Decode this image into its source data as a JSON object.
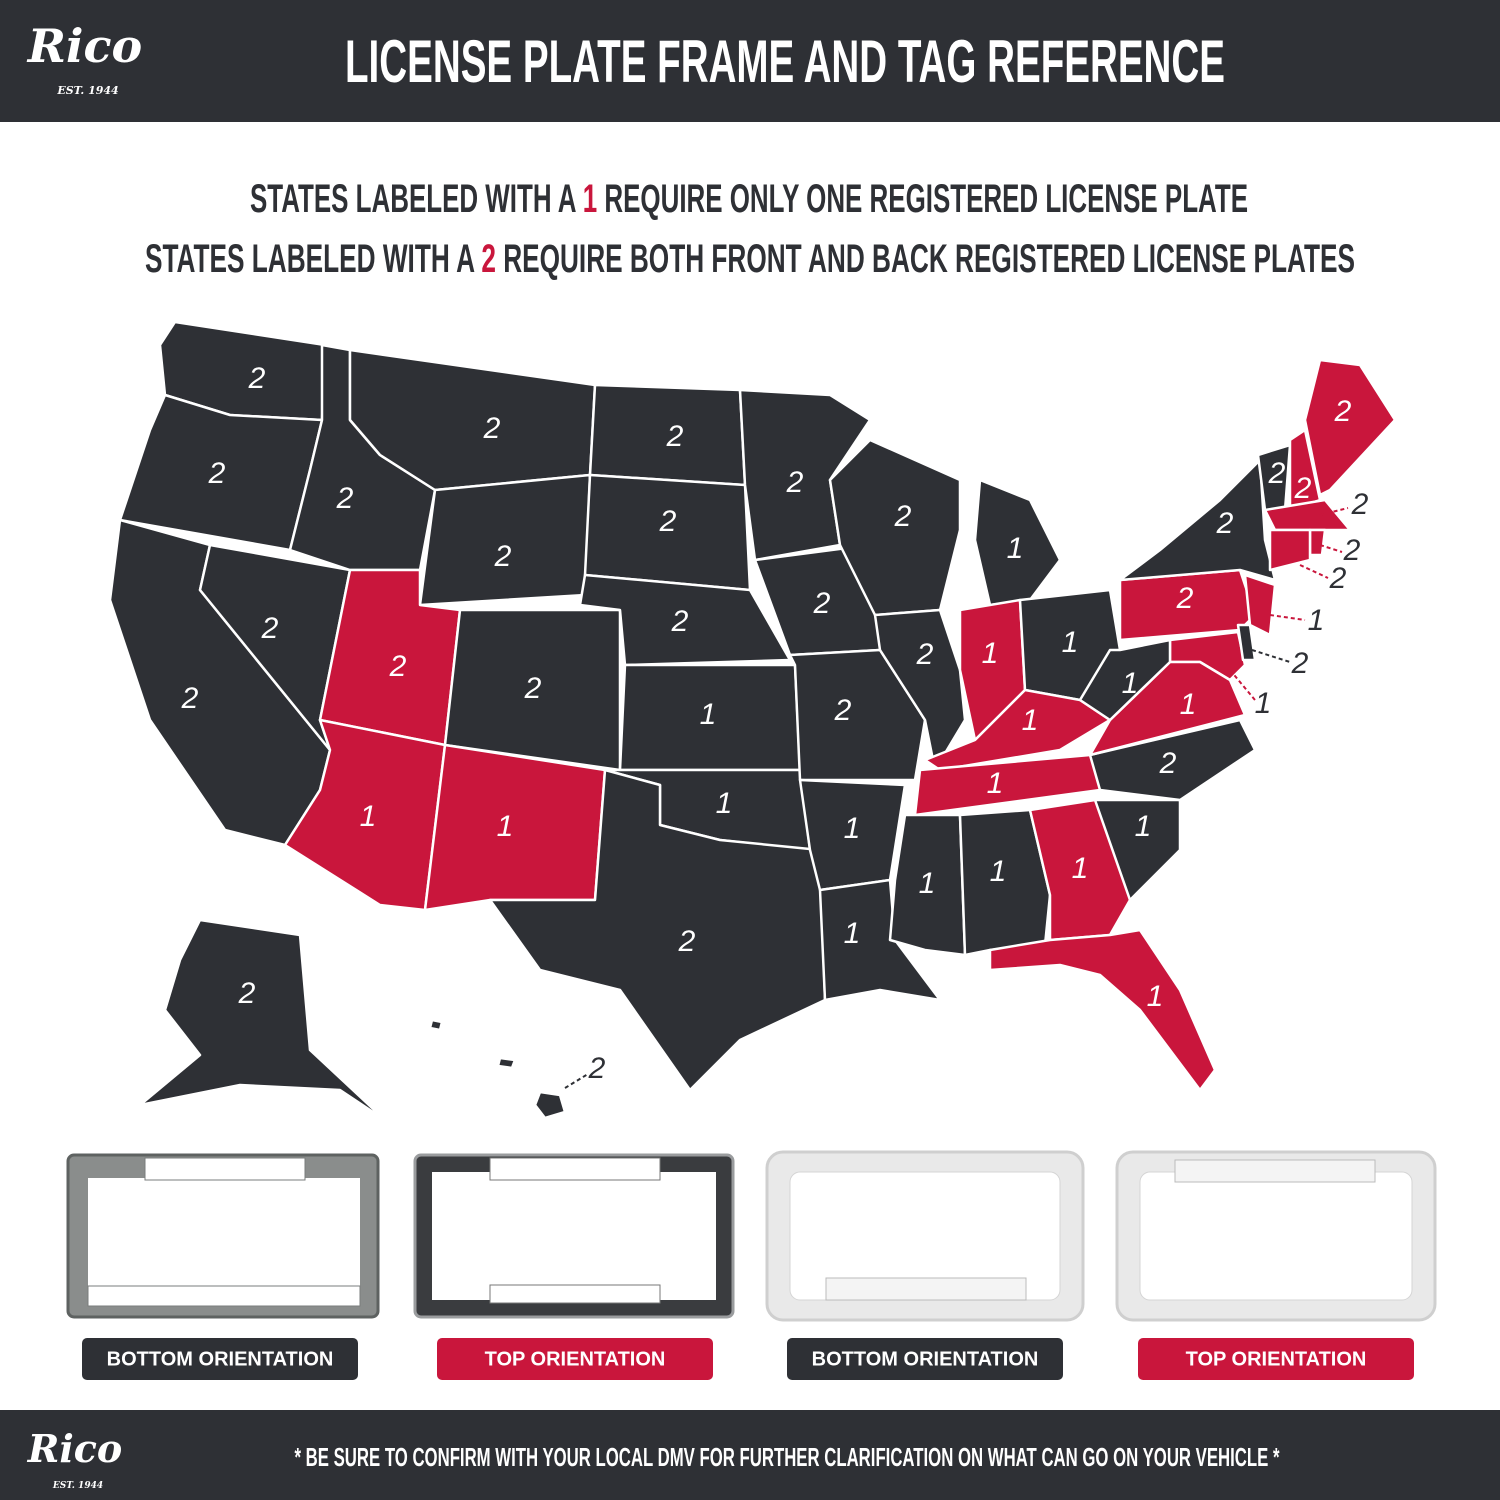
{
  "header": {
    "logo": "Rico",
    "logo_est": "EST. 1944",
    "title": "LICENSE PLATE FRAME AND TAG REFERENCE"
  },
  "legend": [
    {
      "prefix": "STATES LABELED WITH A",
      "number": "1",
      "suffix": "REQUIRE ONLY ONE REGISTERED LICENSE PLATE"
    },
    {
      "prefix": "STATES LABELED WITH A",
      "number": "2",
      "suffix": "REQUIRE BOTH FRONT AND BACK REGISTERED LICENSE PLATES"
    }
  ],
  "map": {
    "states": [
      {
        "label": "2",
        "color": "#2e3035"
      },
      {
        "label": "2",
        "color": "#2e3035"
      },
      {
        "label": "2",
        "color": "#2e3035"
      },
      {
        "label": "2",
        "color": "#2e3035"
      },
      {
        "label": "2",
        "color": "#2e3035"
      },
      {
        "label": "2",
        "color": "#2e3035"
      },
      {
        "label": "2",
        "color": "#2e3035"
      },
      {
        "label": "2",
        "color": "#c9163c"
      },
      {
        "label": "2",
        "color": "#2e3035"
      },
      {
        "label": "1",
        "color": "#c9163c"
      },
      {
        "label": "1",
        "color": "#c9163c"
      },
      {
        "label": "2",
        "color": "#2e3035"
      },
      {
        "label": "2",
        "color": "#2e3035"
      },
      {
        "label": "2",
        "color": "#2e3035"
      },
      {
        "label": "1",
        "color": "#2e3035"
      },
      {
        "label": "1",
        "color": "#2e3035"
      },
      {
        "label": "2",
        "color": "#2e3035"
      },
      {
        "label": "2",
        "color": "#2e3035"
      },
      {
        "label": "2",
        "color": "#2e3035"
      },
      {
        "label": "2",
        "color": "#2e3035"
      },
      {
        "label": "1",
        "color": "#2e3035"
      },
      {
        "label": "1",
        "color": "#2e3035"
      },
      {
        "label": "2",
        "color": "#2e3035"
      },
      {
        "label": "2",
        "color": "#2e3035"
      },
      {
        "label": "1",
        "color": "#2e3035"
      },
      {
        "label": "1",
        "color": "#c9163c"
      },
      {
        "label": "1",
        "color": "#2e3035"
      },
      {
        "label": "1",
        "color": "#c9163c"
      },
      {
        "label": "1",
        "color": "#c9163c"
      },
      {
        "label": "1",
        "color": "#2e3035"
      },
      {
        "label": "1",
        "color": "#2e3035"
      },
      {
        "label": "1",
        "color": "#c9163c"
      },
      {
        "label": "1",
        "color": "#c9163c"
      },
      {
        "label": "1",
        "color": "#2e3035"
      },
      {
        "label": "1",
        "color": "#c9163c"
      },
      {
        "label": "2",
        "color": "#2e3035"
      },
      {
        "label": "1",
        "color": "#c9163c"
      },
      {
        "label": "1",
        "color": "#2e3035"
      },
      {
        "label": "2",
        "color": "#c9163c"
      },
      {
        "label": "2",
        "color": "#2e3035"
      },
      {
        "label": "2",
        "color": "#2e3035"
      },
      {
        "label": "2",
        "color": "#c9163c"
      },
      {
        "label": "2",
        "color": "#c9163c"
      },
      {
        "label": "2",
        "color": "#c9163c"
      },
      {
        "label": "2",
        "color": "#c9163c"
      },
      {
        "label": "2",
        "color": "#c9163c"
      },
      {
        "label": "1",
        "color": "#c9163c"
      },
      {
        "label": "2",
        "color": "#2e3035"
      },
      {
        "label": "2",
        "color": "#2e3035"
      },
      {
        "label": "2",
        "color": "#2e3035"
      }
    ]
  },
  "frames": [
    {
      "caption": "BOTTOM ORIENTATION"
    },
    {
      "caption": "TOP ORIENTATION"
    },
    {
      "caption": "BOTTOM ORIENTATION"
    },
    {
      "caption": "TOP ORIENTATION"
    }
  ],
  "footer": {
    "logo": "Rico",
    "logo_est": "EST. 1944",
    "note": "* BE SURE TO CONFIRM WITH YOUR LOCAL DMV FOR FURTHER CLARIFICATION ON WHAT CAN GO ON YOUR VEHICLE *"
  }
}
